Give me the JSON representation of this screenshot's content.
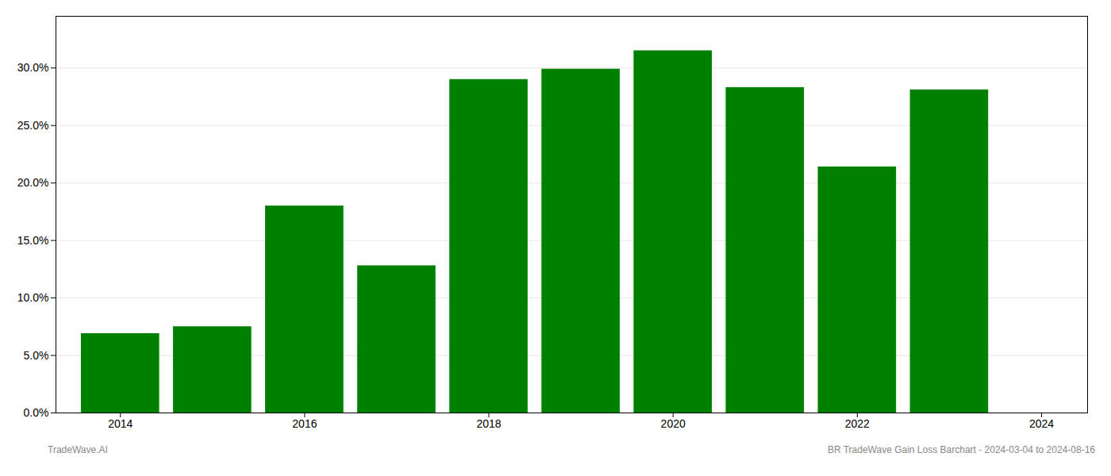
{
  "chart_data": {
    "type": "bar",
    "x": [
      2014,
      2015,
      2016,
      2017,
      2018,
      2019,
      2020,
      2021,
      2022,
      2023
    ],
    "values": [
      0.069,
      0.075,
      0.18,
      0.128,
      0.29,
      0.299,
      0.315,
      0.283,
      0.214,
      0.281
    ],
    "color": "#008000",
    "xlim": [
      2013.3,
      2024.5
    ],
    "xticks": [
      2014,
      2016,
      2018,
      2020,
      2022,
      2024
    ],
    "ylim": [
      0.0,
      0.345
    ],
    "yticks": [
      {
        "value": 0.0,
        "label": "0.0%"
      },
      {
        "value": 0.05,
        "label": "5.0%"
      },
      {
        "value": 0.1,
        "label": "10.0%"
      },
      {
        "value": 0.15,
        "label": "15.0%"
      },
      {
        "value": 0.2,
        "label": "20.0%"
      },
      {
        "value": 0.25,
        "label": "25.0%"
      },
      {
        "value": 0.3,
        "label": "30.0%"
      }
    ],
    "grid": true,
    "annotations": [
      "TradeWave.AI",
      "BR TradeWave Gain Loss Barchart - 2024-03-04 to 2024-08-16"
    ]
  }
}
